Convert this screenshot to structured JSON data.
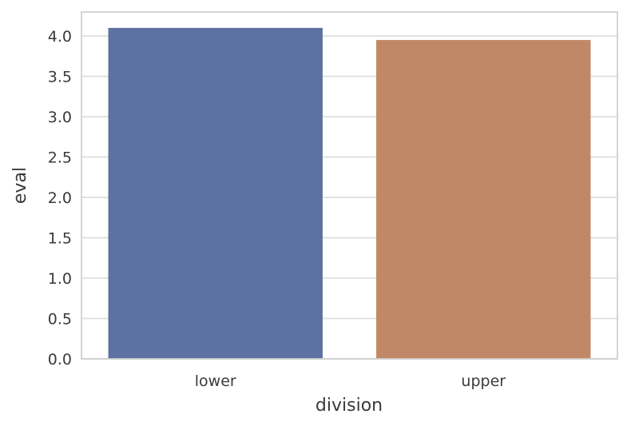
{
  "chart_data": {
    "type": "bar",
    "categories": [
      "lower",
      "upper"
    ],
    "values": [
      4.1,
      3.95
    ],
    "colors": [
      "#5d72a0",
      "#c08867"
    ],
    "xlabel": "division",
    "ylabel": "eval",
    "ylim": [
      0,
      4.2
    ],
    "yticks": [
      "0.0",
      "0.5",
      "1.0",
      "1.5",
      "2.0",
      "2.5",
      "3.0",
      "3.5",
      "4.0"
    ],
    "grid": true
  }
}
